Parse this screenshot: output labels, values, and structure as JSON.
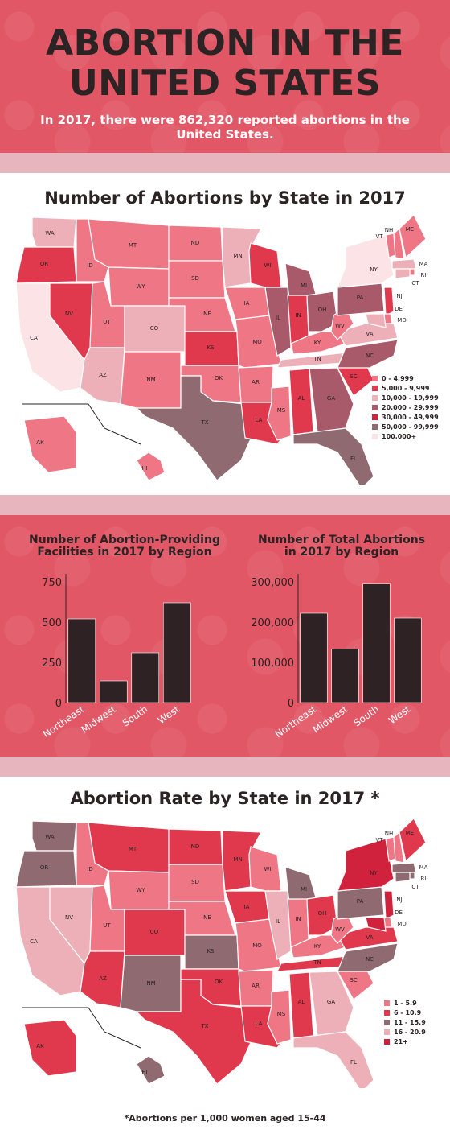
{
  "header": {
    "title_line1": "ABORTION IN THE",
    "title_line2": "UNITED STATES",
    "subtitle": "In 2017, there were 862,320 reported abortions in the United States."
  },
  "colors": {
    "header_bg": "#e25766",
    "divider": "#e7b5bd",
    "bar": "#2e2224",
    "text_dark": "#2b2324"
  },
  "map1": {
    "title": "Number of Abortions by State in 2017",
    "legend": [
      {
        "label": "0 - 4,999",
        "color": "#ee7685"
      },
      {
        "label": "5,000 - 9,999",
        "color": "#e0384c"
      },
      {
        "label": "10,000 - 19,999",
        "color": "#eeb0b8"
      },
      {
        "label": "20,000 - 29,999",
        "color": "#a8596a"
      },
      {
        "label": "30,000 - 49,999",
        "color": "#d0223c"
      },
      {
        "label": "50,000 - 99,999",
        "color": "#8f6a70"
      },
      {
        "label": "100,000+",
        "color": "#fbe3e6"
      }
    ],
    "states": {
      "WA": "#eeb0b8",
      "OR": "#e0384c",
      "CA": "#fbe3e6",
      "NV": "#e0384c",
      "ID": "#ee7685",
      "MT": "#ee7685",
      "WY": "#ee7685",
      "UT": "#ee7685",
      "AZ": "#eeb0b8",
      "CO": "#eeb0b8",
      "NM": "#ee7685",
      "ND": "#ee7685",
      "SD": "#ee7685",
      "NE": "#ee7685",
      "KS": "#e0384c",
      "OK": "#ee7685",
      "TX": "#8f6a70",
      "MN": "#eeb0b8",
      "IA": "#ee7685",
      "MO": "#ee7685",
      "AR": "#ee7685",
      "LA": "#e0384c",
      "WI": "#e0384c",
      "IL": "#a8596a",
      "MS": "#ee7685",
      "MI": "#a8596a",
      "IN": "#e0384c",
      "OH": "#a8596a",
      "KY": "#ee7685",
      "TN": "#eeb0b8",
      "AL": "#e0384c",
      "GA": "#a8596a",
      "FL": "#8f6a70",
      "SC": "#e0384c",
      "NC": "#a8596a",
      "VA": "#eeb0b8",
      "WV": "#ee7685",
      "PA": "#a8596a",
      "NY": "#fbe3e6",
      "VT": "#ee7685",
      "NH": "#ee7685",
      "ME": "#ee7685",
      "MA": "#eeb0b8",
      "RI": "#ee7685",
      "CT": "#eeb0b8",
      "NJ": "#e0384c",
      "DE": "#ee7685",
      "MD": "#eeb0b8",
      "AK": "#ee7685",
      "HI": "#ee7685"
    }
  },
  "chart_data": [
    {
      "type": "bar",
      "title_line1": "Number of Abortion-Providing",
      "title_line2": "Facilities in 2017 by Region",
      "categories": [
        "Northeast",
        "Midwest",
        "South",
        "West"
      ],
      "values": [
        520,
        135,
        310,
        620
      ],
      "yticks": [
        "750",
        "500",
        "250",
        "0"
      ],
      "ylim": [
        0,
        750
      ]
    },
    {
      "type": "bar",
      "title_line1": "Number of Total Abortions",
      "title_line2": "in 2017 by Region",
      "categories": [
        "Northeast",
        "Midwest",
        "South",
        "West"
      ],
      "values": [
        222000,
        133000,
        295000,
        210000
      ],
      "yticks": [
        "300,000",
        "200,000",
        "100,000",
        "0"
      ],
      "ylim": [
        0,
        300000
      ]
    }
  ],
  "map2": {
    "title": "Abortion Rate by State in 2017",
    "title_mark": "*",
    "legend": [
      {
        "label": "1 - 5.9",
        "color": "#ee7685"
      },
      {
        "label": "6 - 10.9",
        "color": "#e0384c"
      },
      {
        "label": "11 - 15.9",
        "color": "#8f6a70"
      },
      {
        "label": "16 - 20.9",
        "color": "#eeb0b8"
      },
      {
        "label": "21+",
        "color": "#d0223c"
      }
    ],
    "states": {
      "WA": "#8f6a70",
      "OR": "#8f6a70",
      "CA": "#eeb0b8",
      "NV": "#eeb0b8",
      "ID": "#ee7685",
      "MT": "#e0384c",
      "WY": "#ee7685",
      "UT": "#ee7685",
      "AZ": "#e0384c",
      "CO": "#e0384c",
      "NM": "#8f6a70",
      "ND": "#e0384c",
      "SD": "#ee7685",
      "NE": "#ee7685",
      "KS": "#8f6a70",
      "OK": "#e0384c",
      "TX": "#e0384c",
      "MN": "#e0384c",
      "IA": "#e0384c",
      "MO": "#ee7685",
      "AR": "#ee7685",
      "LA": "#e0384c",
      "WI": "#ee7685",
      "IL": "#eeb0b8",
      "MS": "#ee7685",
      "MI": "#8f6a70",
      "IN": "#ee7685",
      "OH": "#e0384c",
      "KY": "#ee7685",
      "TN": "#e0384c",
      "AL": "#e0384c",
      "GA": "#eeb0b8",
      "FL": "#eeb0b8",
      "SC": "#ee7685",
      "NC": "#8f6a70",
      "VA": "#e0384c",
      "WV": "#ee7685",
      "PA": "#8f6a70",
      "NY": "#d0223c",
      "VT": "#ee7685",
      "NH": "#ee7685",
      "ME": "#e0384c",
      "MA": "#8f6a70",
      "RI": "#8f6a70",
      "CT": "#8f6a70",
      "NJ": "#d0223c",
      "DE": "#ee7685",
      "MD": "#d0223c",
      "AK": "#e0384c",
      "HI": "#8f6a70"
    },
    "footnote": "*Abortions per 1,000 women aged 15-44"
  },
  "state_labels": [
    "WA",
    "OR",
    "CA",
    "NV",
    "ID",
    "MT",
    "WY",
    "UT",
    "AZ",
    "CO",
    "NM",
    "ND",
    "SD",
    "NE",
    "KS",
    "OK",
    "TX",
    "MN",
    "IA",
    "MO",
    "AR",
    "LA",
    "WI",
    "IL",
    "MS",
    "MI",
    "IN",
    "OH",
    "KY",
    "TN",
    "AL",
    "GA",
    "FL",
    "SC",
    "NC",
    "VA",
    "WV",
    "PA",
    "NY",
    "VT",
    "NH",
    "ME",
    "MA",
    "RI",
    "CT",
    "NJ",
    "DE",
    "MD",
    "AK",
    "HI"
  ]
}
